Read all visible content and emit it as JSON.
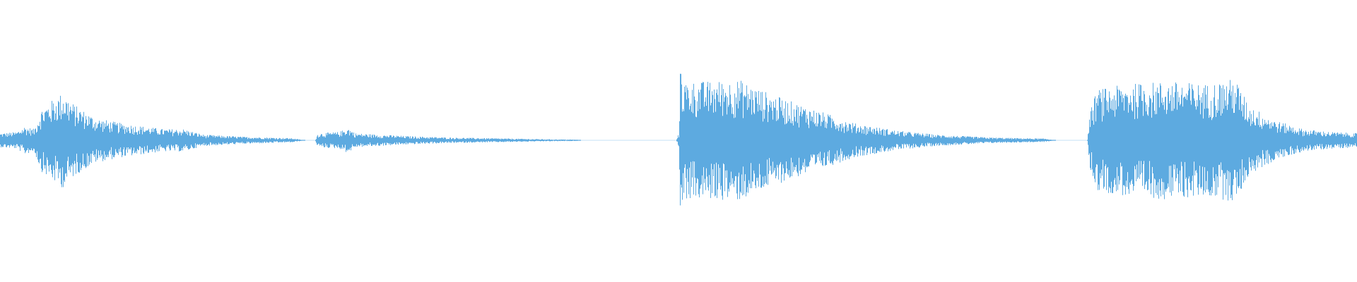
{
  "chart_data": {
    "type": "waveform",
    "color": "#5DAAE0",
    "background": "#FFFFFF",
    "axes": false,
    "grid": false,
    "legend": false,
    "amplitude_range": [
      -1,
      1
    ],
    "time_range": [
      0,
      1
    ],
    "envelope": [
      [
        0.0,
        0.05
      ],
      [
        0.012,
        0.06
      ],
      [
        0.018,
        0.1
      ],
      [
        0.025,
        0.08
      ],
      [
        0.03,
        0.22
      ],
      [
        0.04,
        0.3
      ],
      [
        0.046,
        0.34
      ],
      [
        0.055,
        0.25
      ],
      [
        0.07,
        0.16
      ],
      [
        0.09,
        0.12
      ],
      [
        0.12,
        0.08
      ],
      [
        0.135,
        0.08
      ],
      [
        0.15,
        0.04
      ],
      [
        0.18,
        0.025
      ],
      [
        0.215,
        0.015
      ],
      [
        0.225,
        0.0
      ],
      [
        0.232,
        0.0
      ],
      [
        0.234,
        0.05
      ],
      [
        0.25,
        0.06
      ],
      [
        0.256,
        0.09
      ],
      [
        0.262,
        0.05
      ],
      [
        0.28,
        0.04
      ],
      [
        0.3,
        0.03
      ],
      [
        0.33,
        0.02
      ],
      [
        0.36,
        0.015
      ],
      [
        0.4,
        0.008
      ],
      [
        0.425,
        0.005
      ],
      [
        0.428,
        0.0
      ],
      [
        0.498,
        0.0
      ],
      [
        0.5,
        0.05
      ],
      [
        0.5015,
        0.67
      ],
      [
        0.503,
        0.42
      ],
      [
        0.52,
        0.42
      ],
      [
        0.545,
        0.43
      ],
      [
        0.57,
        0.32
      ],
      [
        0.6,
        0.22
      ],
      [
        0.63,
        0.12
      ],
      [
        0.66,
        0.07
      ],
      [
        0.69,
        0.04
      ],
      [
        0.73,
        0.02
      ],
      [
        0.77,
        0.012
      ],
      [
        0.778,
        0.0
      ],
      [
        0.801,
        0.0
      ],
      [
        0.803,
        0.2
      ],
      [
        0.808,
        0.36
      ],
      [
        0.83,
        0.4
      ],
      [
        0.86,
        0.42
      ],
      [
        0.89,
        0.4
      ],
      [
        0.91,
        0.44
      ],
      [
        0.92,
        0.25
      ],
      [
        0.94,
        0.14
      ],
      [
        0.96,
        0.08
      ],
      [
        0.98,
        0.06
      ],
      [
        1.0,
        0.05
      ]
    ]
  }
}
